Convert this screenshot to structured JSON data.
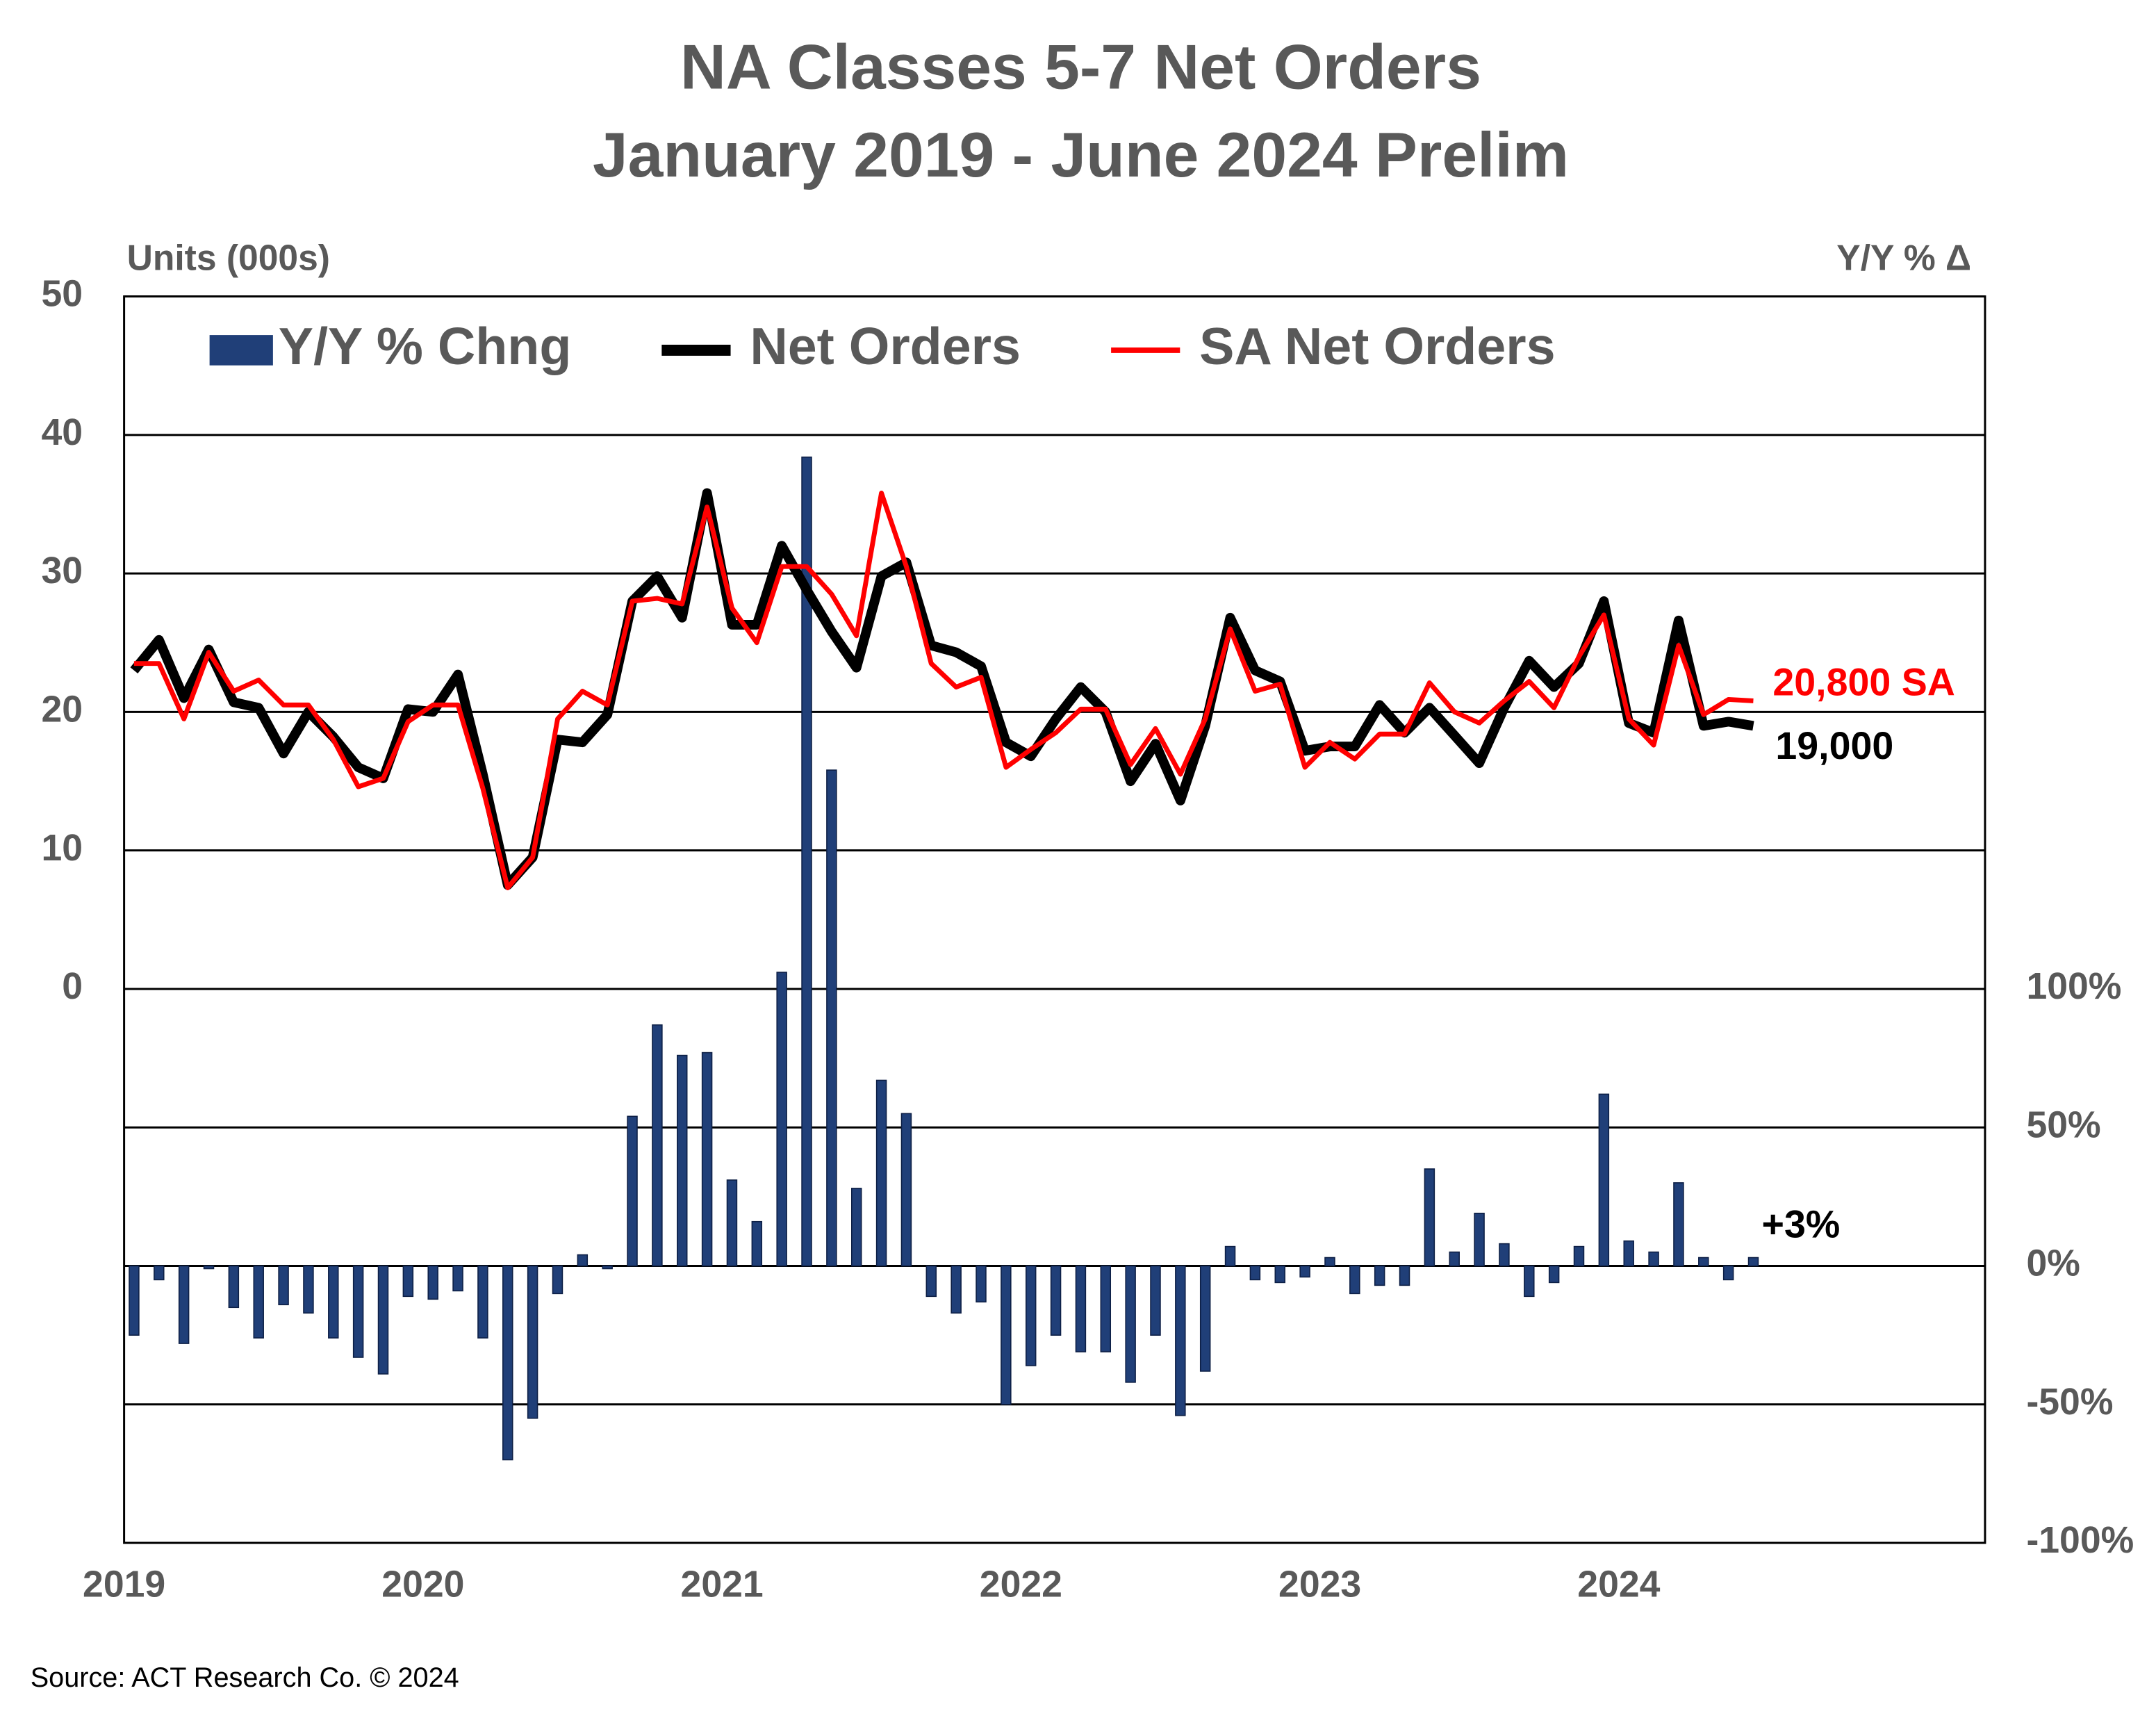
{
  "chart_data": {
    "type": "combo",
    "title": "NA Classes 5-7 Net Orders",
    "subtitle": "January 2019 - June 2024 Prelim",
    "y_label": "Units (000s)",
    "y2_label": "Y/Y % Δ",
    "source": "Source: ACT Research Co. © 2024",
    "categories": [
      "2019",
      null,
      null,
      null,
      null,
      null,
      null,
      null,
      null,
      null,
      null,
      null,
      "2020",
      null,
      null,
      null,
      null,
      null,
      null,
      null,
      null,
      null,
      null,
      null,
      "2021",
      null,
      null,
      null,
      null,
      null,
      null,
      null,
      null,
      null,
      null,
      null,
      "2022",
      null,
      null,
      null,
      null,
      null,
      null,
      null,
      null,
      null,
      null,
      null,
      "2023",
      null,
      null,
      null,
      null,
      null,
      null,
      null,
      null,
      null,
      null,
      null,
      "2024",
      null,
      null,
      null,
      null,
      null
    ],
    "ylim": [
      -40,
      50
    ],
    "yticks": [
      0,
      10,
      20,
      30,
      40,
      50
    ],
    "y2lim": [
      -100,
      350
    ],
    "y2ticks": [
      {
        "value": -100,
        "label": "-100%"
      },
      {
        "value": -50,
        "label": "-50%"
      },
      {
        "value": 0,
        "label": "0%"
      },
      {
        "value": 50,
        "label": "50%"
      },
      {
        "value": 100,
        "label": "100%"
      }
    ],
    "grid": true,
    "legend": "top",
    "series": [
      {
        "name": "Y/Y % Chng",
        "type": "bar",
        "axis": "y2",
        "color": "#203f78",
        "values": [
          -25,
          -5,
          -28,
          -1,
          -15,
          -26,
          -14,
          -17,
          -26,
          -33,
          -39,
          -11,
          -12,
          -9,
          -26,
          -70,
          -55,
          -10,
          4,
          -1,
          54,
          87,
          76,
          77,
          31,
          16,
          106,
          292,
          179,
          28,
          67,
          55,
          -11,
          -17,
          -13,
          -50,
          -36,
          -25,
          -31,
          -31,
          -42,
          -25,
          -54,
          -38,
          7,
          -5,
          -6,
          -4,
          3,
          -10,
          -7,
          -7,
          35,
          5,
          19,
          8,
          -11,
          -6,
          7,
          62,
          9,
          5,
          30,
          3,
          -5,
          3
        ]
      },
      {
        "name": "Net Orders",
        "type": "line",
        "color": "#000000",
        "values": [
          23,
          25.2,
          21,
          24.5,
          20.7,
          20.3,
          17,
          20,
          18.2,
          16,
          15.2,
          20.2,
          20,
          22.7,
          15.5,
          7.5,
          9.5,
          18,
          17.8,
          19.8,
          28,
          29.8,
          26.8,
          35.8,
          26.3,
          26.3,
          32,
          28.8,
          25.8,
          23.2,
          29.8,
          30.8,
          24.8,
          24.3,
          23.3,
          17.8,
          16.8,
          19.5,
          21.8,
          20,
          15,
          17.7,
          13.6,
          19,
          26.8,
          23,
          22.2,
          17.2,
          17.5,
          17.5,
          20.5,
          18.5,
          20.3,
          18.3,
          16.3,
          20.3,
          23.7,
          21.8,
          23.5,
          28,
          19.2,
          18.5,
          26.6,
          19,
          19.3,
          19
        ]
      },
      {
        "name": "SA Net Orders",
        "type": "line",
        "color": "#ff0000",
        "values": [
          23.5,
          23.5,
          19.5,
          24.3,
          21.5,
          22.3,
          20.5,
          20.5,
          18,
          14.6,
          15.2,
          19.3,
          20.5,
          20.5,
          14.5,
          7.3,
          9.5,
          19.5,
          21.5,
          20.5,
          28,
          28.2,
          27.8,
          34.8,
          27.5,
          25,
          30.5,
          30.5,
          28.5,
          25.5,
          35.8,
          30.5,
          23.5,
          21.8,
          22.5,
          16,
          17.3,
          18.5,
          20.2,
          20.2,
          16.2,
          18.8,
          15.5,
          19.5,
          26,
          21.5,
          22,
          16,
          17.8,
          16.6,
          18.4,
          18.4,
          22.1,
          20,
          19.2,
          20.8,
          22.2,
          20.3,
          24,
          27,
          19.5,
          17.6,
          24.8,
          19.8,
          20.9,
          20.8
        ]
      }
    ],
    "annotations": [
      {
        "text": "20,800 SA",
        "color": "#ff0000"
      },
      {
        "text": "19,000",
        "color": "#000000"
      },
      {
        "text": "+3%",
        "color": "#000000"
      }
    ]
  }
}
